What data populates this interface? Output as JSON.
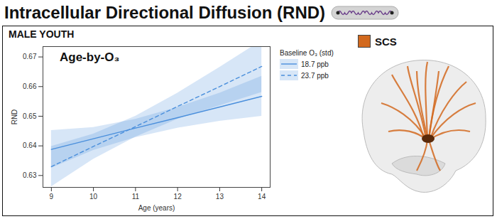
{
  "chart_data": {
    "type": "line",
    "title": "Intracellular Directional Diffusion (RND)",
    "subtitle": "MALE YOUTH",
    "annotation": "Age-by-O₃",
    "x_label": "Age (years)",
    "y_label": "RND",
    "legend_title": "Baseline O₃ (std)",
    "legend": "top-right",
    "grid": false,
    "x": [
      9,
      10,
      11,
      12,
      13,
      14
    ],
    "xlim": [
      8.8,
      14.2
    ],
    "xticks": [
      9,
      10,
      11,
      12,
      13,
      14
    ],
    "ylim": [
      0.626,
      0.6735
    ],
    "yticks": [
      0.63,
      0.64,
      0.65,
      0.66,
      0.67
    ],
    "series": [
      {
        "name": "18.7 ppb",
        "color": "#4a8fdc",
        "line_style": "solid",
        "values": [
          0.6388,
          0.6424,
          0.646,
          0.6495,
          0.6531,
          0.6567
        ],
        "lower": [
          0.6325,
          0.6385,
          0.6428,
          0.646,
          0.6483,
          0.65
        ],
        "upper": [
          0.6452,
          0.6462,
          0.649,
          0.653,
          0.6578,
          0.6635
        ]
      },
      {
        "name": "23.7 ppb",
        "color": "#4a8fdc",
        "line_style": "dashed",
        "values": [
          0.633,
          0.6398,
          0.6465,
          0.6533,
          0.66,
          0.6668
        ],
        "lower": [
          0.6262,
          0.6355,
          0.643,
          0.649,
          0.6535,
          0.658
        ],
        "upper": [
          0.6398,
          0.644,
          0.65,
          0.6578,
          0.6665,
          0.6755
        ]
      }
    ],
    "figure_label": {
      "text": "SCS",
      "color": "#d2691e"
    }
  }
}
